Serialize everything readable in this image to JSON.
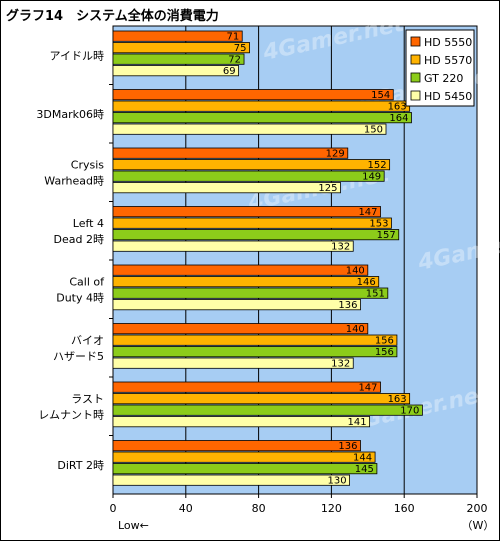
{
  "colors": {
    "plot_bg": "#a7cdf3",
    "bar_stroke": "#000000"
  },
  "chart_data": {
    "type": "bar",
    "orientation": "horizontal",
    "title": "グラフ14　システム全体の消費電力",
    "xlabel": "",
    "ylabel": "",
    "x_unit": "（W）",
    "x_direction_note": "Low←",
    "xlim": [
      0,
      200
    ],
    "x_ticks": [
      0,
      40,
      80,
      120,
      160,
      200
    ],
    "grid": true,
    "legend_position": "top-right",
    "watermark": "4Gamer.net",
    "categories": [
      "アイドル時",
      "3DMark06時",
      "Crysis\nWarhead時",
      "Left 4\nDead 2時",
      "Call of\nDuty 4時",
      "バイオ\nハザード5",
      "ラスト\nレムナント時",
      "DiRT 2時"
    ],
    "series": [
      {
        "name": "HD 5550",
        "color": "#ff6600",
        "values": [
          71,
          154,
          129,
          147,
          140,
          140,
          147,
          136
        ]
      },
      {
        "name": "HD 5570",
        "color": "#ffb300",
        "values": [
          75,
          163,
          152,
          153,
          146,
          156,
          163,
          144
        ]
      },
      {
        "name": "GT 220",
        "color": "#8ccc1a",
        "values": [
          72,
          164,
          149,
          157,
          151,
          156,
          170,
          145
        ]
      },
      {
        "name": "HD 5450",
        "color": "#ffffa8",
        "values": [
          69,
          150,
          125,
          132,
          136,
          132,
          141,
          130
        ]
      }
    ]
  }
}
